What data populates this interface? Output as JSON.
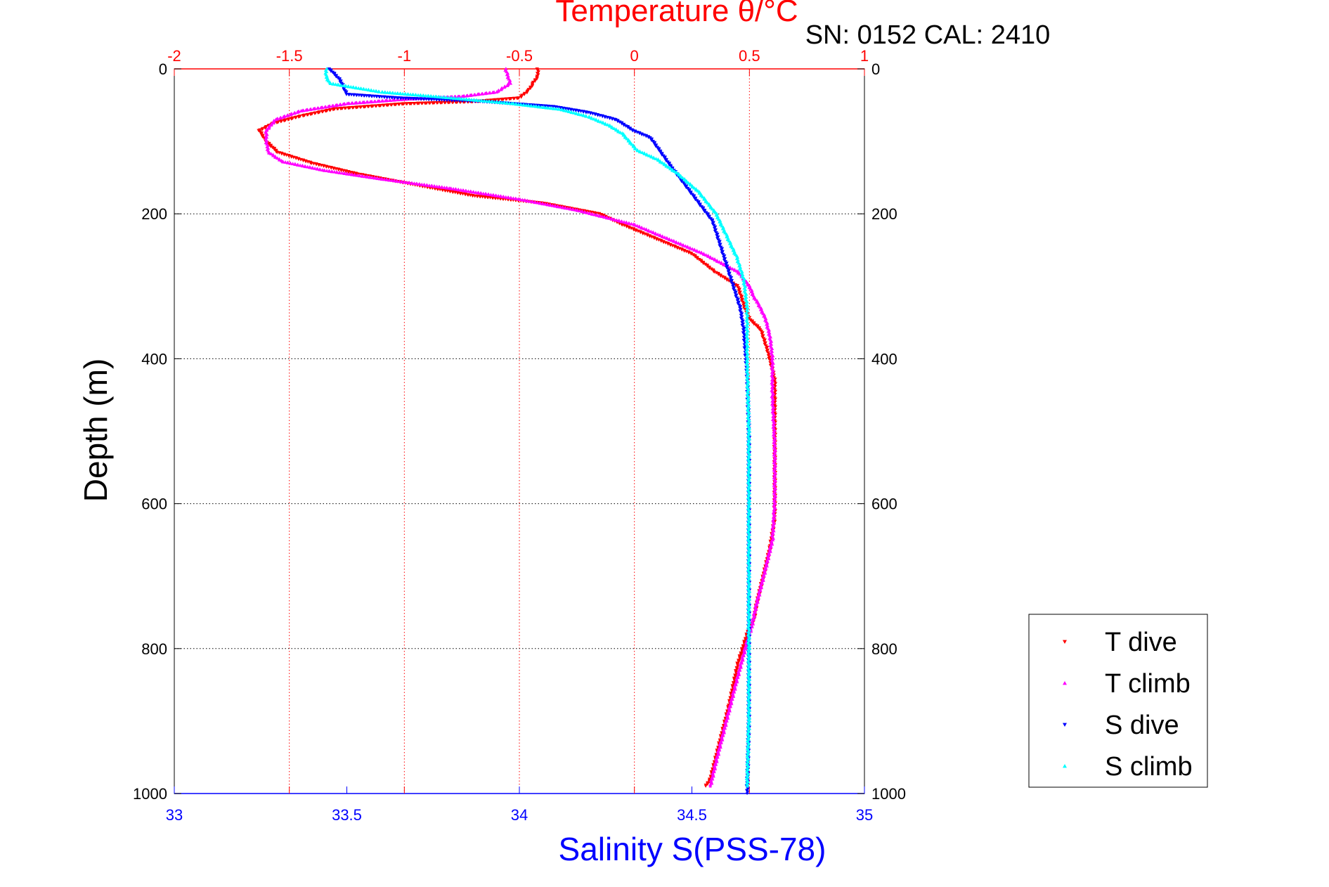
{
  "chart_data": {
    "type": "scatter",
    "top_axis": {
      "label": "Temperature θ/°C",
      "range": [
        -2,
        1
      ],
      "ticks": [
        "-2",
        "-1.5",
        "-1",
        "-0.5",
        "0",
        "0.5",
        "1"
      ],
      "tick_values": [
        -2,
        -1.5,
        -1,
        -0.5,
        0,
        0.5,
        1
      ],
      "color": "#ff0000"
    },
    "bottom_axis": {
      "label": "Salinity S(PSS-78)",
      "range": [
        33,
        35
      ],
      "ticks": [
        "33",
        "33.5",
        "34",
        "34.5",
        "35"
      ],
      "tick_values": [
        33,
        33.5,
        34,
        34.5,
        35
      ],
      "color": "#0000ff"
    },
    "y_axis": {
      "label": "Depth (m)",
      "range": [
        0,
        1000
      ],
      "reversed": true,
      "ticks": [
        "0",
        "200",
        "400",
        "600",
        "800",
        "1000"
      ],
      "tick_values": [
        0,
        200,
        400,
        600,
        800,
        1000
      ]
    },
    "subtitle": "SN: 0152  CAL: 2410",
    "grid": true,
    "legend_position": "bottom-right",
    "series": [
      {
        "name": "T dive",
        "axis": "temperature",
        "color": "#ff0000",
        "marker": "triangle-down",
        "points": [
          [
            -0.42,
            0
          ],
          [
            -0.42,
            10
          ],
          [
            -0.44,
            20
          ],
          [
            -0.46,
            30
          ],
          [
            -0.5,
            40
          ],
          [
            -0.7,
            45
          ],
          [
            -1.0,
            48
          ],
          [
            -1.3,
            55
          ],
          [
            -1.45,
            65
          ],
          [
            -1.57,
            75
          ],
          [
            -1.63,
            85
          ],
          [
            -1.6,
            100
          ],
          [
            -1.55,
            115
          ],
          [
            -1.4,
            130
          ],
          [
            -1.2,
            145
          ],
          [
            -0.95,
            160
          ],
          [
            -0.7,
            175
          ],
          [
            -0.4,
            185
          ],
          [
            -0.15,
            200
          ],
          [
            -0.05,
            215
          ],
          [
            0.1,
            235
          ],
          [
            0.25,
            255
          ],
          [
            0.35,
            280
          ],
          [
            0.45,
            300
          ],
          [
            0.48,
            330
          ],
          [
            0.5,
            345
          ],
          [
            0.55,
            360
          ],
          [
            0.58,
            390
          ],
          [
            0.6,
            415
          ],
          [
            0.61,
            430
          ],
          [
            0.61,
            500
          ],
          [
            0.61,
            620
          ],
          [
            0.59,
            660
          ],
          [
            0.56,
            700
          ],
          [
            0.53,
            740
          ],
          [
            0.52,
            760
          ],
          [
            0.5,
            770
          ],
          [
            0.45,
            820
          ],
          [
            0.41,
            880
          ],
          [
            0.37,
            930
          ],
          [
            0.33,
            980
          ],
          [
            0.31,
            990
          ]
        ]
      },
      {
        "name": "T climb",
        "axis": "temperature",
        "color": "#ff00ff",
        "marker": "triangle-up",
        "points": [
          [
            -0.56,
            0
          ],
          [
            -0.55,
            10
          ],
          [
            -0.54,
            20
          ],
          [
            -0.6,
            32
          ],
          [
            -0.75,
            38
          ],
          [
            -1.0,
            42
          ],
          [
            -1.25,
            48
          ],
          [
            -1.45,
            58
          ],
          [
            -1.56,
            70
          ],
          [
            -1.6,
            85
          ],
          [
            -1.6,
            100
          ],
          [
            -1.59,
            115
          ],
          [
            -1.53,
            128
          ],
          [
            -1.35,
            140
          ],
          [
            -1.1,
            152
          ],
          [
            -0.8,
            165
          ],
          [
            -0.5,
            180
          ],
          [
            -0.25,
            195
          ],
          [
            0.0,
            215
          ],
          [
            0.15,
            235
          ],
          [
            0.3,
            255
          ],
          [
            0.45,
            280
          ],
          [
            0.5,
            300
          ],
          [
            0.52,
            315
          ],
          [
            0.54,
            325
          ],
          [
            0.57,
            345
          ],
          [
            0.59,
            370
          ],
          [
            0.6,
            400
          ],
          [
            0.6,
            450
          ],
          [
            0.61,
            520
          ],
          [
            0.61,
            600
          ],
          [
            0.6,
            650
          ],
          [
            0.57,
            690
          ],
          [
            0.53,
            740
          ],
          [
            0.51,
            770
          ],
          [
            0.49,
            790
          ],
          [
            0.44,
            850
          ],
          [
            0.4,
            900
          ],
          [
            0.36,
            950
          ],
          [
            0.33,
            990
          ]
        ]
      },
      {
        "name": "S dive",
        "axis": "salinity",
        "color": "#0000ff",
        "marker": "triangle-down",
        "points": [
          [
            33.45,
            0
          ],
          [
            33.48,
            15
          ],
          [
            33.49,
            25
          ],
          [
            33.5,
            35
          ],
          [
            33.65,
            40
          ],
          [
            33.9,
            45
          ],
          [
            34.1,
            52
          ],
          [
            34.2,
            60
          ],
          [
            34.28,
            70
          ],
          [
            34.33,
            85
          ],
          [
            34.38,
            95
          ],
          [
            34.41,
            115
          ],
          [
            34.44,
            135
          ],
          [
            34.48,
            160
          ],
          [
            34.52,
            185
          ],
          [
            34.56,
            210
          ],
          [
            34.58,
            240
          ],
          [
            34.6,
            270
          ],
          [
            34.62,
            300
          ],
          [
            34.64,
            330
          ],
          [
            34.65,
            360
          ],
          [
            34.66,
            420
          ],
          [
            34.665,
            500
          ],
          [
            34.665,
            600
          ],
          [
            34.665,
            700
          ],
          [
            34.665,
            800
          ],
          [
            34.665,
            900
          ],
          [
            34.66,
            1000
          ]
        ]
      },
      {
        "name": "S climb",
        "axis": "salinity",
        "color": "#00ffff",
        "marker": "triangle-up",
        "points": [
          [
            33.44,
            0
          ],
          [
            33.44,
            10
          ],
          [
            33.45,
            20
          ],
          [
            33.6,
            32
          ],
          [
            33.8,
            40
          ],
          [
            33.98,
            48
          ],
          [
            34.12,
            56
          ],
          [
            34.2,
            66
          ],
          [
            34.26,
            78
          ],
          [
            34.3,
            90
          ],
          [
            34.34,
            112
          ],
          [
            34.4,
            125
          ],
          [
            34.46,
            145
          ],
          [
            34.52,
            170
          ],
          [
            34.57,
            200
          ],
          [
            34.6,
            230
          ],
          [
            34.63,
            260
          ],
          [
            34.65,
            290
          ],
          [
            34.66,
            330
          ],
          [
            34.66,
            400
          ],
          [
            34.665,
            500
          ],
          [
            34.665,
            600
          ],
          [
            34.665,
            700
          ],
          [
            34.665,
            800
          ],
          [
            34.665,
            900
          ],
          [
            34.66,
            990
          ]
        ]
      }
    ]
  }
}
